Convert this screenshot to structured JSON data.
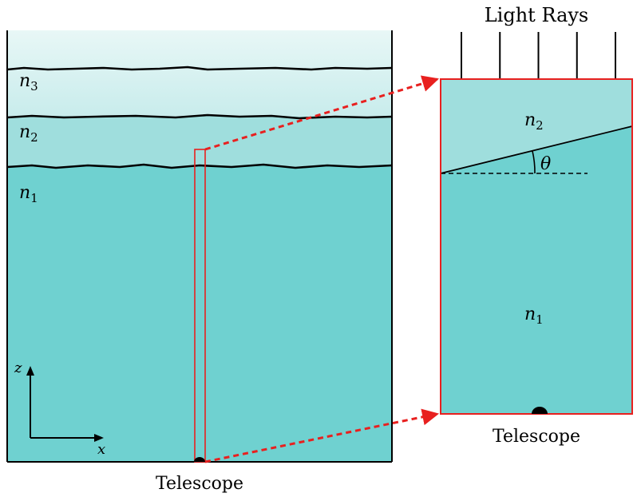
{
  "colors": {
    "layer_n3": "#c8ecec",
    "layer_n3_top": "#e8f7f6",
    "layer_n2": "#9fdedd",
    "layer_n1": "#6fd1d0",
    "highlight": "#e8201f",
    "ink": "#000000"
  },
  "left_panel": {
    "labels": {
      "n3_base": "n",
      "n3_sub": "3",
      "n2_base": "n",
      "n2_sub": "2",
      "n1_base": "n",
      "n1_sub": "1"
    },
    "axes": {
      "z_label": "z",
      "x_label": "x"
    },
    "telescope_label": "Telescope"
  },
  "right_panel": {
    "title": "Light Rays",
    "arrow_count": 5,
    "labels": {
      "n2_base": "n",
      "n2_sub": "2",
      "n1_base": "n",
      "n1_sub": "1",
      "angle": "θ"
    },
    "telescope_label": "Telescope"
  }
}
